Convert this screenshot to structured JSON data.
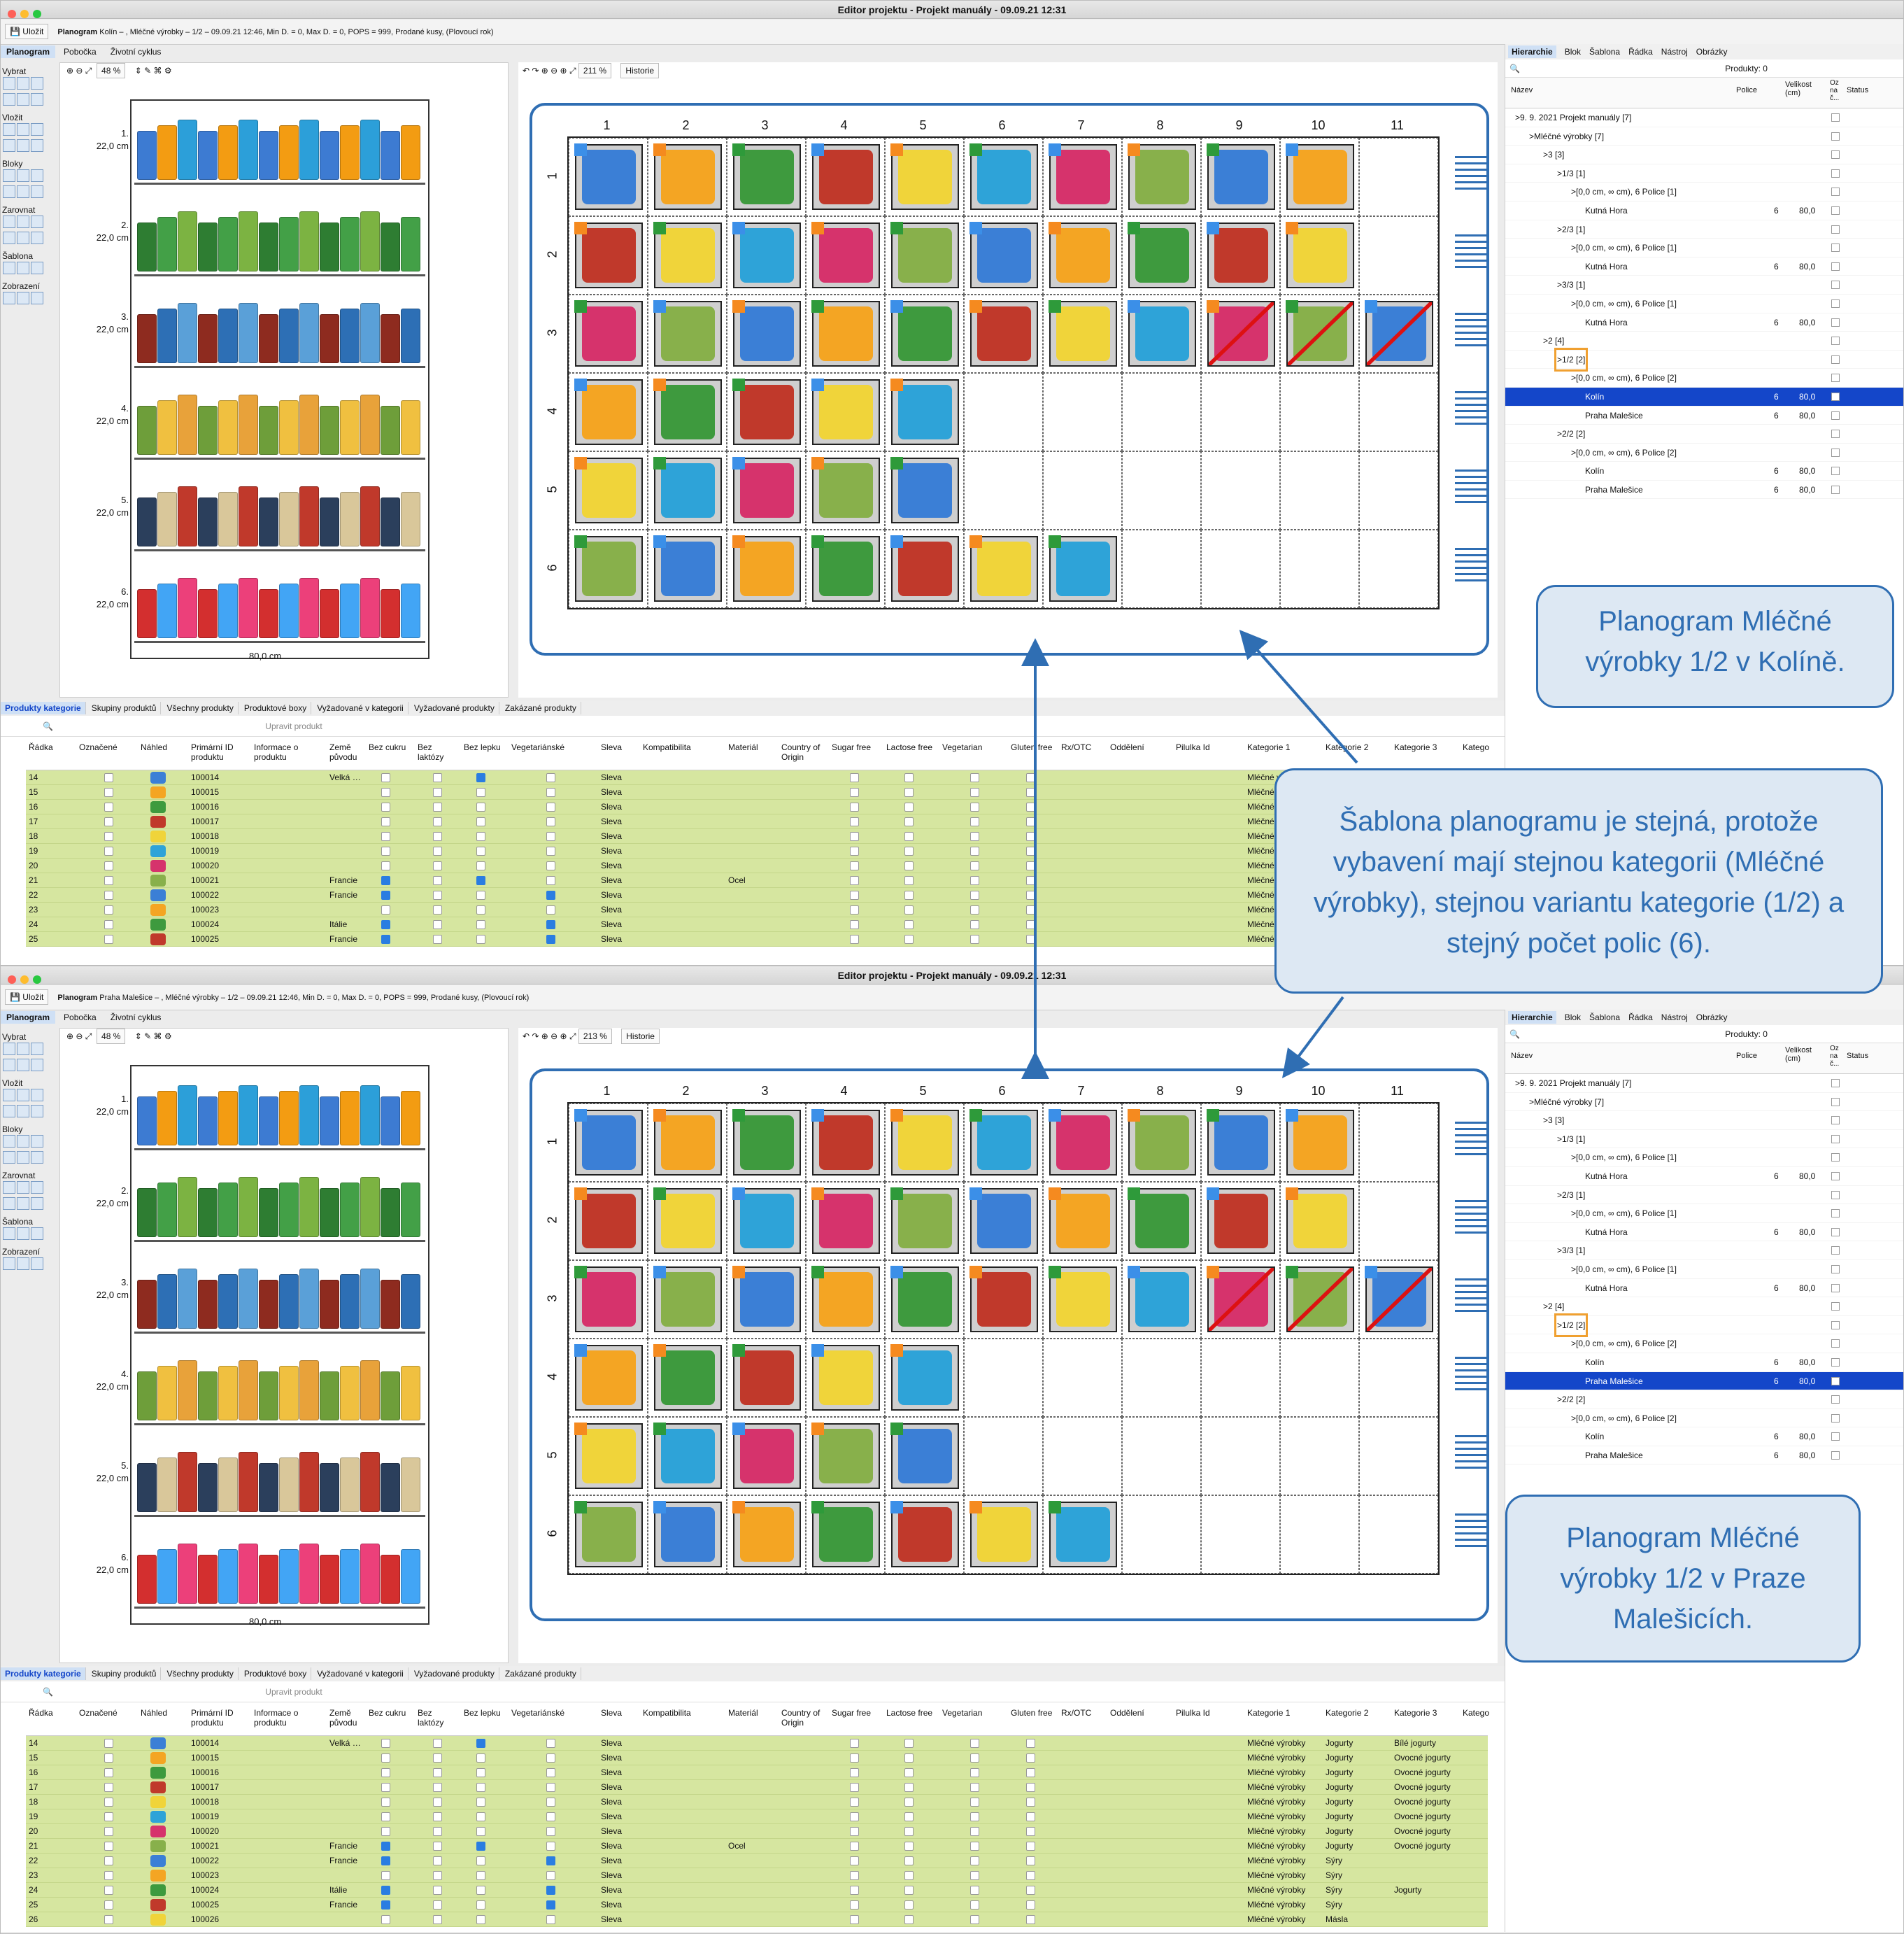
{
  "windows": [
    {
      "title": "Editor projektu - Projekt manuály - 09.09.21 12:31",
      "save_label": "Uložit",
      "planogram_info_bold": "Planogram",
      "planogram_info": "Kolín – , Mléčné výrobky – 1/2 – 09.09.21 12:46, Min D. = 0, Max D. = 0, POPS = 999, Prodané kusy, (Plovoucí rok)",
      "mode_tabs": [
        "Planogram",
        "Pobočka",
        "Životní cyklus"
      ],
      "left_zoom": "48 %",
      "grid_zoom": "211 %",
      "historie": "Historie",
      "tree_selected": "Kolín"
    },
    {
      "title": "Editor projektu - Projekt manuály - 09.09.21 12:31",
      "save_label": "Uložit",
      "planogram_info_bold": "Planogram",
      "planogram_info": "Praha Malešice – , Mléčné výrobky – 1/2 – 09.09.21 12:46, Min D. = 0, Max D. = 0, POPS = 999, Prodané kusy, (Plovoucí rok)",
      "mode_tabs": [
        "Planogram",
        "Pobočka",
        "Životní cyklus"
      ],
      "left_zoom": "48 %",
      "grid_zoom": "213 %",
      "historie": "Historie",
      "tree_selected": "Praha Malešice"
    }
  ],
  "left_tools": [
    "Vybrat",
    "Vložit",
    "Bloky",
    "Zarovnat",
    "Šablona",
    "Zobrazení"
  ],
  "shelves": [
    {
      "num": "1.",
      "height": "22,0 cm"
    },
    {
      "num": "2.",
      "height": "22,0 cm"
    },
    {
      "num": "3.",
      "height": "22,0 cm"
    },
    {
      "num": "4.",
      "height": "22,0 cm"
    },
    {
      "num": "5.",
      "height": "22,0 cm"
    },
    {
      "num": "6.",
      "height": "22,0 cm"
    }
  ],
  "rack_width": "80,0 cm",
  "grid": {
    "columns": [
      "1",
      "2",
      "3",
      "4",
      "5",
      "6",
      "7",
      "8",
      "9",
      "10",
      "11"
    ],
    "rows": [
      "1",
      "2",
      "3",
      "4",
      "5",
      "6"
    ]
  },
  "right_tabs": [
    "Hierarchie",
    "Blok",
    "Šablona",
    "Řádka",
    "Nástroj",
    "Obrázky"
  ],
  "produkty_count": "Produkty: 0",
  "tree_headers": {
    "name": "Název",
    "police": "Police",
    "velikost": "Velikost (cm)",
    "oz": "Oz na č...",
    "status": "Status"
  },
  "tree": [
    {
      "label": ">9. 9. 2021 Projekt manuály [7]",
      "indent": 0,
      "police": "",
      "vel": ""
    },
    {
      "label": ">Mléčné výrobky [7]",
      "indent": 1,
      "police": "",
      "vel": ""
    },
    {
      "label": ">3 [3]",
      "indent": 2,
      "police": "",
      "vel": ""
    },
    {
      "label": ">1/3 [1]",
      "indent": 3,
      "police": "",
      "vel": ""
    },
    {
      "label": ">[0,0 cm, ∞ cm), 6 Police [1]",
      "indent": 4,
      "police": "",
      "vel": ""
    },
    {
      "label": "Kutná Hora",
      "indent": 5,
      "police": "6",
      "vel": "80,0"
    },
    {
      "label": ">2/3 [1]",
      "indent": 3,
      "police": "",
      "vel": ""
    },
    {
      "label": ">[0,0 cm, ∞ cm), 6 Police [1]",
      "indent": 4,
      "police": "",
      "vel": ""
    },
    {
      "label": "Kutná Hora",
      "indent": 5,
      "police": "6",
      "vel": "80,0"
    },
    {
      "label": ">3/3 [1]",
      "indent": 3,
      "police": "",
      "vel": ""
    },
    {
      "label": ">[0,0 cm, ∞ cm), 6 Police [1]",
      "indent": 4,
      "police": "",
      "vel": ""
    },
    {
      "label": "Kutná Hora",
      "indent": 5,
      "police": "6",
      "vel": "80,0"
    },
    {
      "label": ">2 [4]",
      "indent": 2,
      "police": "",
      "vel": ""
    },
    {
      "label": ">1/2 [2]",
      "indent": 3,
      "police": "",
      "vel": ""
    },
    {
      "label": ">[0,0 cm, ∞ cm), 6 Police [2]",
      "indent": 4,
      "police": "",
      "vel": ""
    },
    {
      "label": "Kolín",
      "indent": 5,
      "police": "6",
      "vel": "80,0"
    },
    {
      "label": "Praha Malešice",
      "indent": 5,
      "police": "6",
      "vel": "80,0"
    },
    {
      "label": ">2/2 [2]",
      "indent": 3,
      "police": "",
      "vel": ""
    },
    {
      "label": ">[0,0 cm, ∞ cm), 6 Police [2]",
      "indent": 4,
      "police": "",
      "vel": ""
    },
    {
      "label": "Kolín",
      "indent": 5,
      "police": "6",
      "vel": "80,0"
    },
    {
      "label": "Praha Malešice",
      "indent": 5,
      "police": "6",
      "vel": "80,0"
    }
  ],
  "bottom_tabs": [
    "Produkty kategorie",
    "Skupiny produktů",
    "Všechny produkty",
    "Produktové boxy",
    "Vyžadované v kategorii",
    "Vyžadované produkty",
    "Zakázané produkty"
  ],
  "upravit": "Upravit produkt",
  "table_headers": [
    "Řádka",
    "Označené",
    "Náhled",
    "Primární ID produktu",
    "Informace o produktu",
    "Země původu",
    "Bez cukru",
    "Bez laktózy",
    "Bez lepku",
    "Vegetariánské",
    "Sleva",
    "Kompatibilita",
    "Materiál",
    "Country of Origin",
    "Sugar free",
    "Lactose free",
    "Vegetarian",
    "Gluten free",
    "Rx/OTC",
    "Oddělení",
    "Pilulka Id",
    "Kategorie 1",
    "Kategorie 2",
    "Kategorie 3",
    "Katego"
  ],
  "table_rows": [
    {
      "r": "14",
      "id": "100014",
      "zeme": "Velká …",
      "bezc": false,
      "bezl": true,
      "veg": false,
      "sleva": "Sleva",
      "mat": "",
      "k1": "Mléčné výrobky",
      "k2": "Jogurty",
      "k3": "Bílé jogurty"
    },
    {
      "r": "15",
      "id": "100015",
      "zeme": "",
      "bezc": false,
      "bezl": false,
      "veg": false,
      "sleva": "Sleva",
      "mat": "",
      "k1": "Mléčné výrobky",
      "k2": "Jogurty",
      "k3": "Ovocné jogurty"
    },
    {
      "r": "16",
      "id": "100016",
      "zeme": "",
      "bezc": false,
      "bezl": false,
      "veg": false,
      "sleva": "Sleva",
      "mat": "",
      "k1": "Mléčné výrobky",
      "k2": "Jogurty",
      "k3": "Ovocné jogurty"
    },
    {
      "r": "17",
      "id": "100017",
      "zeme": "",
      "bezc": false,
      "bezl": false,
      "veg": false,
      "sleva": "Sleva",
      "mat": "",
      "k1": "Mléčné výrobky",
      "k2": "Jogurty",
      "k3": "Ovocné jogurty"
    },
    {
      "r": "18",
      "id": "100018",
      "zeme": "",
      "bezc": false,
      "bezl": false,
      "veg": false,
      "sleva": "Sleva",
      "mat": "",
      "k1": "Mléčné výrobky",
      "k2": "Jogurty",
      "k3": "Ovocné jogurty"
    },
    {
      "r": "19",
      "id": "100019",
      "zeme": "",
      "bezc": false,
      "bezl": false,
      "veg": false,
      "sleva": "Sleva",
      "mat": "",
      "k1": "Mléčné výrobky",
      "k2": "Jogurty",
      "k3": "Ovocné jogurty"
    },
    {
      "r": "20",
      "id": "100020",
      "zeme": "",
      "bezc": false,
      "bezl": false,
      "veg": false,
      "sleva": "Sleva",
      "mat": "",
      "k1": "Mléčné výrobky",
      "k2": "Jogurty",
      "k3": "Ovocné jogurty"
    },
    {
      "r": "21",
      "id": "100021",
      "zeme": "Francie",
      "bezc": true,
      "bezl": true,
      "veg": false,
      "sleva": "Sleva",
      "mat": "Ocel",
      "k1": "Mléčné výrobky",
      "k2": "Jogurty",
      "k3": "Ovocné jogurty"
    },
    {
      "r": "22",
      "id": "100022",
      "zeme": "Francie",
      "bezc": true,
      "bezl": false,
      "veg": true,
      "sleva": "Sleva",
      "mat": "",
      "k1": "Mléčné výrobky",
      "k2": "Sýry",
      "k3": ""
    },
    {
      "r": "23",
      "id": "100023",
      "zeme": "",
      "bezc": false,
      "bezl": false,
      "veg": false,
      "sleva": "Sleva",
      "mat": "",
      "k1": "Mléčné výrobky",
      "k2": "Sýry",
      "k3": ""
    },
    {
      "r": "24",
      "id": "100024",
      "zeme": "Itálie",
      "bezc": true,
      "bezl": false,
      "veg": true,
      "sleva": "Sleva",
      "mat": "",
      "k1": "Mléčné výrobky",
      "k2": "Sýry",
      "k3": "Jogurty"
    },
    {
      "r": "25",
      "id": "100025",
      "zeme": "Francie",
      "bezc": true,
      "bezl": false,
      "veg": true,
      "sleva": "Sleva",
      "mat": "",
      "k1": "Mléčné výrobky",
      "k2": "Sýry",
      "k3": ""
    },
    {
      "r": "26",
      "id": "100026",
      "zeme": "",
      "bezc": false,
      "bezl": false,
      "veg": false,
      "sleva": "Sleva",
      "mat": "",
      "k1": "Mléčné výrobky",
      "k2": "Másla",
      "k3": ""
    }
  ],
  "callouts": {
    "top": "Planogram Mléčné výrobky 1/2 v Kolíně.",
    "middle": "Šablona planogramu je stejná, protože vybavení mají stejnou kategorii (Mléčné výrobky), stejnou variantu kategorie (1/2) a stejný počet polic (6).",
    "bottom": "Planogram Mléčné výrobky 1/2 v Praze Malešicích."
  },
  "colors": {
    "accent": "#2f6eb3",
    "selection": "#1446c9",
    "row_green": "#d6e6a0",
    "highlight": "#f0a030"
  }
}
